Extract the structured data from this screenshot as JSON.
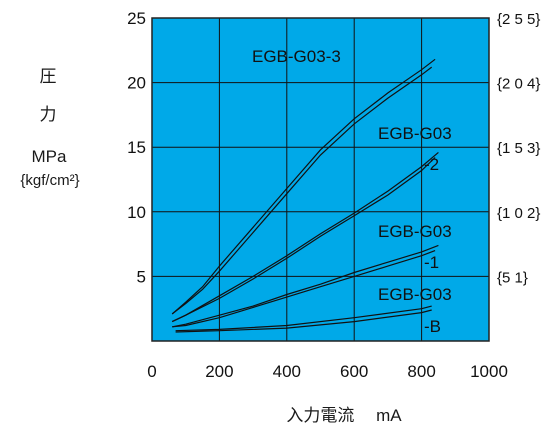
{
  "chart_data": {
    "type": "line",
    "xlabel": "入力電流　 mA",
    "ylabel": [
      "圧",
      "力",
      "MPa",
      "{kgf/cm²}"
    ],
    "xlim": [
      0,
      1000
    ],
    "ylim": [
      0,
      25
    ],
    "x_ticks": [
      "0",
      "200",
      "400",
      "600",
      "800",
      "1000"
    ],
    "y_ticks": [
      "5",
      "10",
      "15",
      "20",
      "25"
    ],
    "y_ticks_right": [
      "{5 1}",
      "{1 0 2}",
      "{1 5 3}",
      "{2 0 4}",
      "{2 5 5}"
    ],
    "grid": true,
    "plot_background": "#00a9e8",
    "line_color": "#111111",
    "series": [
      {
        "name": "EGB-G03-3",
        "x": [
          60,
          100,
          150,
          200,
          300,
          400,
          500,
          600,
          700,
          800,
          840
        ],
        "values": [
          2.1,
          3.0,
          4.2,
          5.8,
          8.8,
          11.8,
          14.8,
          17.2,
          19.2,
          21.0,
          21.8
        ]
      },
      {
        "name": "EGB-G03-3",
        "x": [
          60,
          100,
          150,
          200,
          300,
          400,
          500,
          600,
          700,
          800,
          830
        ],
        "values": [
          2.1,
          2.9,
          4.0,
          5.4,
          8.4,
          11.4,
          14.4,
          16.8,
          18.8,
          20.6,
          21.2
        ]
      },
      {
        "name": "EGB-G03-2",
        "x": [
          60,
          100,
          200,
          300,
          400,
          500,
          600,
          700,
          800,
          850
        ],
        "values": [
          1.5,
          2.0,
          3.5,
          5.0,
          6.6,
          8.3,
          9.9,
          11.6,
          13.5,
          14.6
        ]
      },
      {
        "name": "EGB-G03-2",
        "x": [
          60,
          100,
          200,
          300,
          400,
          500,
          600,
          700,
          800,
          840
        ],
        "values": [
          1.5,
          2.0,
          3.3,
          4.8,
          6.4,
          8.1,
          9.7,
          11.3,
          13.2,
          14.2
        ]
      },
      {
        "name": "EGB-G03-1",
        "x": [
          60,
          100,
          200,
          300,
          400,
          500,
          600,
          700,
          800,
          850
        ],
        "values": [
          1.1,
          1.3,
          2.0,
          2.7,
          3.6,
          4.4,
          5.3,
          6.1,
          6.9,
          7.4
        ]
      },
      {
        "name": "EGB-G03-1",
        "x": [
          60,
          100,
          200,
          300,
          400,
          500,
          600,
          700,
          800,
          840
        ],
        "values": [
          1.1,
          1.2,
          1.8,
          2.6,
          3.4,
          4.2,
          5.0,
          5.8,
          6.6,
          7.0
        ]
      },
      {
        "name": "EGB-G03-B",
        "x": [
          70,
          200,
          400,
          600,
          800,
          830
        ],
        "values": [
          0.8,
          0.9,
          1.2,
          1.8,
          2.5,
          2.7
        ]
      },
      {
        "name": "EGB-G03-B",
        "x": [
          70,
          200,
          400,
          600,
          800,
          830
        ],
        "values": [
          0.7,
          0.8,
          1.0,
          1.5,
          2.2,
          2.4
        ]
      }
    ],
    "annotations": [
      "EGB-G03-3",
      "EGB-G03",
      "-2",
      "EGB-G03",
      "-1",
      "EGB-G03",
      "-B"
    ]
  }
}
